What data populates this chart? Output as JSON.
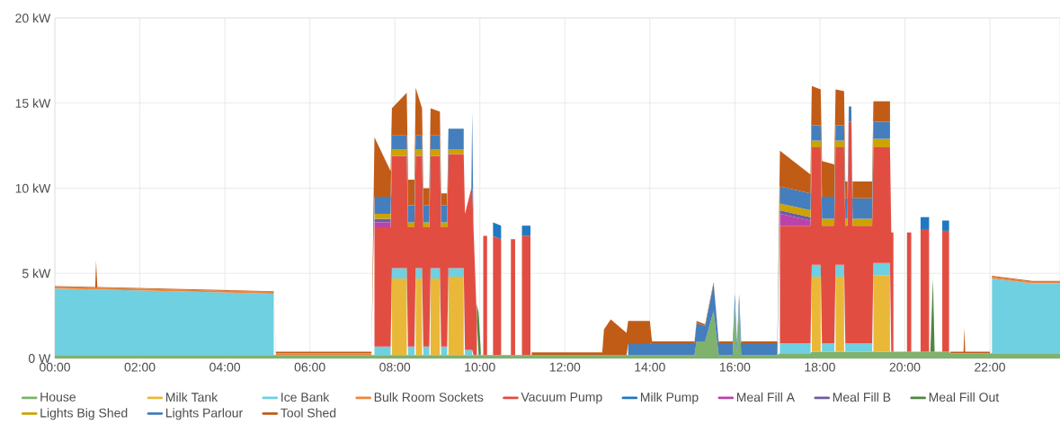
{
  "chart_data": {
    "type": "area",
    "stacked": true,
    "grid": true,
    "legend": "bottom",
    "x": [
      0,
      0.95,
      0.97,
      1.0,
      5.15,
      5.2,
      7.45,
      7.52,
      7.9,
      7.93,
      8.28,
      8.31,
      8.46,
      8.49,
      8.64,
      8.67,
      8.81,
      8.84,
      9.06,
      9.09,
      9.23,
      9.26,
      9.62,
      9.65,
      9.8,
      9.82,
      9.85,
      9.93,
      9.97,
      10.02,
      10.08,
      10.17,
      10.2,
      10.31,
      10.5,
      10.53,
      10.73,
      10.83,
      10.86,
      10.99,
      11.19,
      11.22,
      12.88,
      12.92,
      13.08,
      13.45,
      13.49,
      14.0,
      14.05,
      15.05,
      15.1,
      15.3,
      15.5,
      15.62,
      15.95,
      16.0,
      16.05,
      16.1,
      16.15,
      17.0,
      17.06,
      17.78,
      17.81,
      18.02,
      18.05,
      18.34,
      18.37,
      18.57,
      18.6,
      18.65,
      18.68,
      18.74,
      18.77,
      19.23,
      19.26,
      19.65,
      19.68,
      19.73,
      19.76,
      20.05,
      20.15,
      20.18,
      20.37,
      20.57,
      20.6,
      20.66,
      20.7,
      20.88,
      21.04,
      21.07,
      21.38,
      21.4,
      21.42,
      22.0,
      22.05,
      23.0,
      23.65
    ],
    "xlim": [
      0,
      23.65
    ],
    "xticks": [
      {
        "value": 0,
        "label": "00:00"
      },
      {
        "value": 2,
        "label": "02:00"
      },
      {
        "value": 4,
        "label": "04:00"
      },
      {
        "value": 6,
        "label": "06:00"
      },
      {
        "value": 8,
        "label": "08:00"
      },
      {
        "value": 10,
        "label": "10:00"
      },
      {
        "value": 12,
        "label": "12:00"
      },
      {
        "value": 14,
        "label": "14:00"
      },
      {
        "value": 16,
        "label": "16:00"
      },
      {
        "value": 18,
        "label": "18:00"
      },
      {
        "value": 20,
        "label": "20:00"
      },
      {
        "value": 22,
        "label": "22:00"
      }
    ],
    "ylim": [
      0,
      20
    ],
    "yticks": [
      {
        "value": 0,
        "label": "0 W"
      },
      {
        "value": 5,
        "label": "5 kW"
      },
      {
        "value": 10,
        "label": "10 kW"
      },
      {
        "value": 15,
        "label": "15 kW"
      },
      {
        "value": 20,
        "label": "20 kW"
      }
    ],
    "series": [
      {
        "name": "House",
        "color": "#7eb26d",
        "values": [
          0.2,
          0.2,
          0.2,
          0.2,
          0.2,
          0.2,
          0.2,
          0.2,
          0.2,
          0.2,
          0.2,
          0.2,
          0.2,
          0.2,
          0.2,
          0.2,
          0.2,
          0.2,
          0.2,
          0.2,
          0.2,
          0.2,
          0.2,
          0.2,
          0.2,
          0.2,
          0.2,
          0.2,
          0.2,
          0.2,
          0.2,
          0.2,
          0.2,
          0.2,
          0.2,
          0.2,
          0.2,
          0.2,
          0.2,
          0.2,
          0.2,
          0.2,
          0.2,
          0.2,
          0.2,
          0.2,
          0.2,
          0.2,
          0.2,
          0.2,
          1.0,
          1.0,
          2.8,
          0.2,
          0.2,
          3.2,
          0.3,
          3.2,
          0.2,
          0.2,
          0.3,
          0.3,
          0.4,
          0.4,
          0.4,
          0.4,
          0.4,
          0.4,
          0.4,
          0.4,
          0.4,
          0.4,
          0.4,
          0.4,
          0.4,
          0.4,
          0.4,
          0.4,
          0.4,
          0.4,
          0.4,
          0.4,
          0.4,
          0.4,
          0.4,
          0.4,
          0.4,
          0.4,
          0.4,
          0.3,
          0.3,
          0.3,
          0.3,
          0.3,
          0.3,
          0.3,
          0.3
        ]
      },
      {
        "name": "Milk Tank",
        "color": "#eab839",
        "values": [
          null,
          null,
          null,
          null,
          null,
          null,
          null,
          null,
          null,
          4.5,
          4.5,
          null,
          null,
          4.5,
          4.5,
          null,
          null,
          4.5,
          4.5,
          null,
          null,
          4.6,
          4.6,
          null,
          null,
          null,
          null,
          null,
          null,
          null,
          null,
          null,
          null,
          null,
          null,
          null,
          null,
          null,
          null,
          null,
          null,
          null,
          null,
          null,
          null,
          null,
          null,
          null,
          null,
          null,
          null,
          null,
          null,
          null,
          null,
          null,
          null,
          null,
          null,
          null,
          null,
          null,
          4.4,
          4.4,
          null,
          null,
          4.4,
          4.4,
          null,
          null,
          null,
          null,
          null,
          null,
          4.5,
          4.5,
          null,
          null,
          null,
          null,
          null,
          null,
          null,
          null,
          null,
          null,
          null,
          null,
          null,
          null,
          null,
          null,
          null,
          null,
          null,
          null,
          null
        ]
      },
      {
        "name": "Ice Bank",
        "color": "#6ed0e0",
        "values": [
          3.9,
          3.85,
          3.85,
          3.85,
          3.6,
          null,
          null,
          0.5,
          0.5,
          0.6,
          0.6,
          0.5,
          0.5,
          0.6,
          0.6,
          0.5,
          0.5,
          0.6,
          0.6,
          0.5,
          0.5,
          0.5,
          0.5,
          0.3,
          0.3,
          0.3,
          null,
          null,
          null,
          null,
          null,
          null,
          null,
          null,
          null,
          null,
          null,
          null,
          null,
          null,
          null,
          null,
          null,
          null,
          null,
          null,
          null,
          null,
          null,
          null,
          null,
          null,
          null,
          null,
          null,
          null,
          null,
          null,
          null,
          null,
          0.6,
          0.6,
          0.7,
          0.7,
          0.5,
          0.5,
          0.7,
          0.7,
          0.5,
          0.5,
          0.5,
          0.5,
          0.5,
          0.5,
          0.7,
          0.7,
          null,
          null,
          null,
          null,
          null,
          null,
          null,
          null,
          null,
          null,
          null,
          null,
          null,
          null,
          null,
          null,
          null,
          null,
          4.4,
          4.1,
          4.1
        ]
      },
      {
        "name": "Bulk Room Sockets",
        "color": "#ef843c",
        "values": [
          0.1,
          0.1,
          0.1,
          0.1,
          0.1,
          0.1,
          0.1,
          null,
          null,
          null,
          null,
          null,
          null,
          null,
          null,
          null,
          null,
          null,
          null,
          null,
          null,
          null,
          null,
          null,
          null,
          null,
          null,
          null,
          null,
          null,
          null,
          null,
          null,
          null,
          null,
          null,
          null,
          null,
          null,
          null,
          null,
          null,
          null,
          null,
          null,
          null,
          null,
          null,
          null,
          null,
          null,
          null,
          null,
          null,
          null,
          null,
          null,
          null,
          null,
          null,
          null,
          null,
          null,
          null,
          null,
          null,
          null,
          null,
          null,
          null,
          null,
          null,
          null,
          null,
          null,
          null,
          null,
          null,
          null,
          null,
          null,
          null,
          null,
          null,
          null,
          null,
          null,
          null,
          null,
          null,
          null,
          null,
          null,
          null,
          0.1,
          0.1,
          0.1
        ]
      },
      {
        "name": "Vacuum Pump",
        "color": "#e24d42",
        "values": [
          null,
          null,
          null,
          null,
          null,
          null,
          null,
          7.0,
          7.0,
          6.6,
          6.6,
          7.0,
          7.0,
          6.6,
          6.6,
          7.0,
          7.0,
          6.6,
          6.6,
          7.0,
          7.0,
          6.7,
          6.7,
          8.0,
          9.5,
          9.5,
          7.5,
          2.0,
          null,
          null,
          7.0,
          7.0,
          null,
          7.0,
          6.8,
          null,
          6.8,
          6.8,
          null,
          7.0,
          7.0,
          null,
          null,
          null,
          null,
          null,
          null,
          null,
          null,
          null,
          null,
          null,
          null,
          null,
          null,
          null,
          null,
          null,
          null,
          null,
          6.9,
          6.9,
          6.9,
          6.9,
          6.9,
          6.9,
          6.9,
          6.9,
          6.9,
          6.9,
          13.0,
          13.0,
          6.9,
          6.9,
          6.8,
          6.8,
          7.0,
          7.0,
          null,
          7.0,
          7.0,
          null,
          7.2,
          7.2,
          null,
          null,
          null,
          7.1,
          7.1,
          null,
          null,
          null,
          null,
          null,
          null,
          null,
          null
        ]
      },
      {
        "name": "Milk Pump",
        "color": "#1f78c1",
        "values": [
          null,
          null,
          null,
          null,
          null,
          null,
          null,
          null,
          null,
          null,
          null,
          null,
          null,
          null,
          null,
          null,
          null,
          null,
          null,
          null,
          null,
          null,
          null,
          null,
          null,
          null,
          null,
          null,
          null,
          null,
          null,
          null,
          null,
          0.8,
          0.8,
          null,
          null,
          null,
          null,
          0.6,
          0.6,
          null,
          null,
          null,
          null,
          null,
          null,
          null,
          null,
          null,
          null,
          null,
          null,
          null,
          null,
          null,
          null,
          null,
          null,
          null,
          null,
          null,
          null,
          null,
          null,
          null,
          null,
          null,
          null,
          null,
          null,
          null,
          null,
          null,
          null,
          null,
          null,
          null,
          null,
          null,
          null,
          null,
          0.7,
          0.7,
          null,
          null,
          null,
          0.6,
          0.6,
          null,
          null,
          null,
          null,
          null,
          null,
          null,
          null
        ]
      },
      {
        "name": "Meal Fill A",
        "color": "#ba43a9",
        "values": [
          null,
          null,
          null,
          null,
          null,
          null,
          null,
          0.3,
          0.3,
          null,
          null,
          null,
          null,
          null,
          null,
          null,
          null,
          null,
          null,
          null,
          null,
          null,
          null,
          null,
          null,
          null,
          null,
          null,
          null,
          null,
          null,
          null,
          null,
          null,
          null,
          null,
          null,
          null,
          null,
          null,
          null,
          null,
          null,
          null,
          null,
          null,
          null,
          null,
          null,
          null,
          null,
          null,
          null,
          null,
          null,
          null,
          null,
          null,
          null,
          null,
          0.7,
          0.3,
          null,
          null,
          null,
          null,
          null,
          null,
          null,
          null,
          null,
          null,
          null,
          null,
          null,
          null,
          null,
          null,
          null,
          null,
          null,
          null,
          null,
          null,
          null,
          null,
          null,
          null,
          null,
          null,
          null,
          null,
          null,
          null,
          null,
          null,
          null
        ]
      },
      {
        "name": "Meal Fill B",
        "color": "#705da0",
        "values": [
          null,
          null,
          null,
          null,
          null,
          null,
          null,
          0.2,
          0.2,
          null,
          null,
          null,
          null,
          null,
          null,
          null,
          null,
          null,
          null,
          null,
          null,
          null,
          null,
          null,
          null,
          null,
          null,
          null,
          null,
          null,
          null,
          null,
          null,
          null,
          null,
          null,
          null,
          null,
          null,
          null,
          null,
          null,
          null,
          null,
          null,
          null,
          null,
          null,
          null,
          null,
          null,
          null,
          null,
          null,
          null,
          null,
          null,
          null,
          null,
          null,
          0.2,
          0.2,
          null,
          null,
          null,
          null,
          null,
          null,
          null,
          null,
          null,
          null,
          null,
          null,
          null,
          null,
          null,
          null,
          null,
          null,
          null,
          null,
          null,
          null,
          null,
          null,
          null,
          null,
          null,
          null,
          null,
          null,
          null,
          null,
          null,
          null,
          null
        ]
      },
      {
        "name": "Meal Fill Out",
        "color": "#508642",
        "values": [
          null,
          null,
          null,
          null,
          null,
          null,
          null,
          null,
          null,
          null,
          null,
          null,
          null,
          null,
          null,
          null,
          null,
          null,
          null,
          null,
          null,
          null,
          null,
          null,
          null,
          null,
          null,
          1.0,
          2.5,
          0.3,
          null,
          null,
          null,
          null,
          null,
          null,
          null,
          null,
          null,
          null,
          null,
          null,
          null,
          null,
          null,
          null,
          null,
          null,
          null,
          null,
          null,
          null,
          null,
          null,
          null,
          null,
          null,
          null,
          null,
          null,
          null,
          null,
          null,
          null,
          null,
          null,
          null,
          null,
          null,
          null,
          null,
          null,
          null,
          null,
          null,
          null,
          null,
          null,
          null,
          null,
          null,
          null,
          null,
          null,
          0,
          4.3,
          0,
          null,
          null,
          null,
          null,
          null,
          null,
          null,
          null,
          null,
          null
        ]
      },
      {
        "name": "Lights Big Shed",
        "color": "#cca300",
        "values": [
          null,
          null,
          null,
          null,
          null,
          null,
          null,
          0.3,
          0.3,
          0.4,
          0.4,
          0.3,
          0.3,
          0.4,
          0.4,
          0.3,
          0.3,
          0.4,
          0.4,
          0.3,
          0.3,
          0.3,
          0.3,
          null,
          null,
          null,
          null,
          null,
          null,
          null,
          null,
          null,
          null,
          null,
          null,
          null,
          null,
          null,
          null,
          null,
          null,
          null,
          null,
          null,
          null,
          null,
          null,
          null,
          null,
          null,
          null,
          null,
          null,
          null,
          null,
          null,
          null,
          null,
          null,
          null,
          0.4,
          0.4,
          0.4,
          0.4,
          0.4,
          0.4,
          0.4,
          0.4,
          0.4,
          0.4,
          null,
          null,
          0.4,
          0.4,
          0.5,
          0.5,
          null,
          null,
          null,
          null,
          null,
          null,
          null,
          null,
          null,
          null,
          null,
          null,
          null,
          null,
          null,
          null,
          null,
          null,
          null,
          null,
          null
        ]
      },
      {
        "name": "Lights Parlour",
        "color": "#447ebc",
        "values": [
          null,
          null,
          null,
          null,
          null,
          null,
          null,
          1.0,
          1.0,
          0.8,
          0.8,
          1.0,
          1.0,
          0.8,
          0.8,
          1.0,
          1.0,
          0.8,
          0.8,
          1.0,
          1.0,
          1.2,
          1.2,
          null,
          0,
          4.5,
          0,
          null,
          null,
          null,
          null,
          null,
          null,
          null,
          null,
          null,
          null,
          null,
          null,
          null,
          null,
          null,
          null,
          null,
          null,
          null,
          0.65,
          0.65,
          0.7,
          0.7,
          1.1,
          0.9,
          1.6,
          0.7,
          0.7,
          0.6,
          0.6,
          0.6,
          0.7,
          0.7,
          1.0,
          1.0,
          0.9,
          0.9,
          1.3,
          1.3,
          0.9,
          0.9,
          1.2,
          1.2,
          0.9,
          0.9,
          1.2,
          1.2,
          1.0,
          1.0,
          null,
          null,
          null,
          null,
          null,
          null,
          null,
          null,
          null,
          null,
          null,
          null,
          null,
          null,
          null,
          null,
          null,
          null,
          null,
          null,
          null
        ]
      },
      {
        "name": "Tool Shed",
        "color": "#c15c17",
        "values": [
          0.05,
          0.05,
          1.6,
          0.05,
          0.05,
          0.1,
          0.1,
          3.5,
          1.5,
          1.6,
          2.5,
          1.5,
          1.5,
          2.8,
          1.6,
          1.0,
          1.0,
          1.6,
          1.4,
          0.7,
          0.7,
          null,
          null,
          null,
          null,
          null,
          null,
          null,
          null,
          null,
          null,
          null,
          null,
          null,
          null,
          null,
          null,
          null,
          null,
          null,
          null,
          0.15,
          0.15,
          1.5,
          2.1,
          1.3,
          1.35,
          1.35,
          0.1,
          0.1,
          0.1,
          0.1,
          0.1,
          0.1,
          0.1,
          null,
          null,
          null,
          0.1,
          0.1,
          2.1,
          1.1,
          2.3,
          2.1,
          2.1,
          1.9,
          2.1,
          2.0,
          1.0,
          1.0,
          null,
          null,
          1.0,
          1.0,
          1.2,
          1.2,
          null,
          null,
          null,
          null,
          null,
          null,
          null,
          null,
          null,
          null,
          null,
          null,
          null,
          0.1,
          0.1,
          1.5,
          0.1,
          0.1,
          0.05,
          0.05,
          0.05
        ]
      }
    ]
  }
}
